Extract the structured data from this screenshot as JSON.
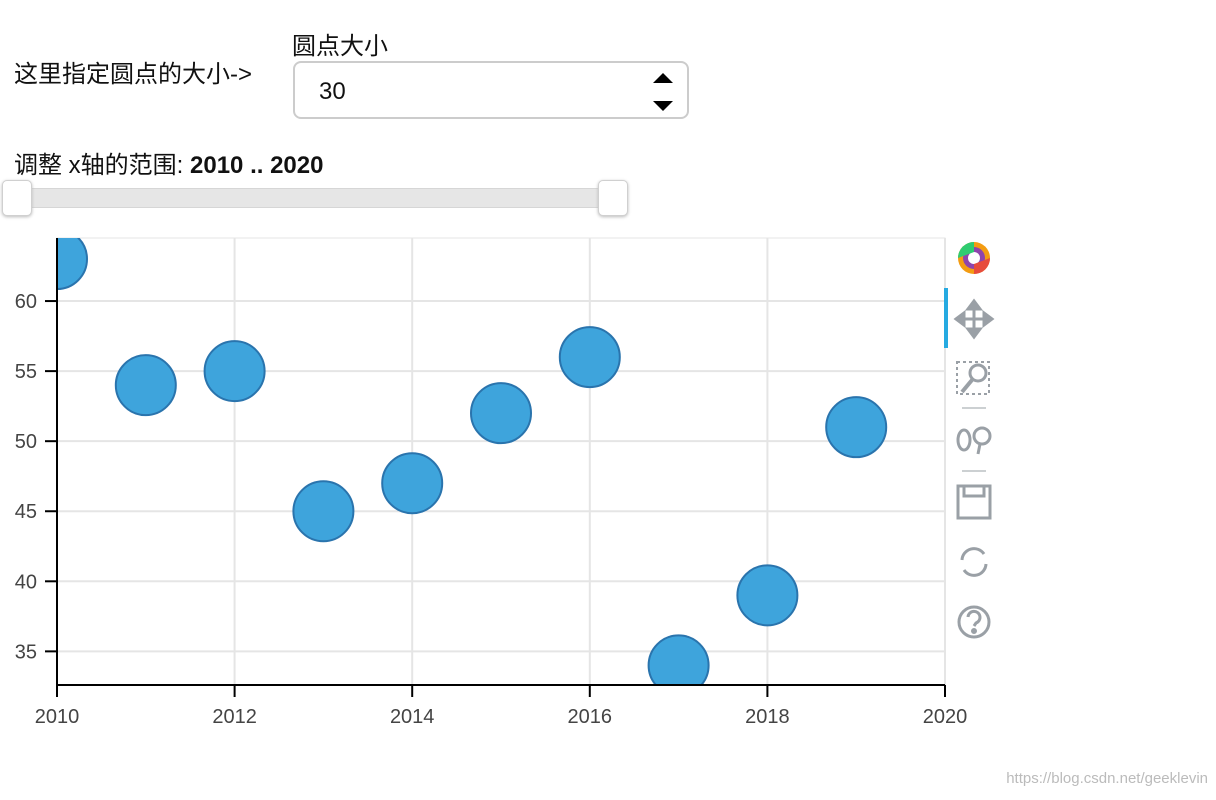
{
  "widgets": {
    "spinner_hint": "这里指定圆点的大小->",
    "spinner_title": "圆点大小",
    "spinner_value": 30,
    "slider_title": "调整 x轴的范围: ",
    "slider_value": "2010 .. 2020"
  },
  "watermark": "https://blog.csdn.net/geeklevin",
  "chart_data": {
    "type": "scatter",
    "x": [
      2010,
      2011,
      2012,
      2013,
      2014,
      2015,
      2016,
      2017,
      2018,
      2019
    ],
    "series": [
      {
        "color": "#3ea4dc",
        "values": [
          63,
          54,
          55,
          45,
          47,
          52,
          56,
          34,
          39,
          51
        ]
      }
    ],
    "xlim": [
      2010,
      2020
    ],
    "xticks": [
      2010,
      2012,
      2014,
      2016,
      2018,
      2020
    ],
    "ylim": [
      32.6,
      64.5
    ],
    "yticks": [
      35,
      40,
      45,
      50,
      55,
      60
    ],
    "grid": true
  }
}
